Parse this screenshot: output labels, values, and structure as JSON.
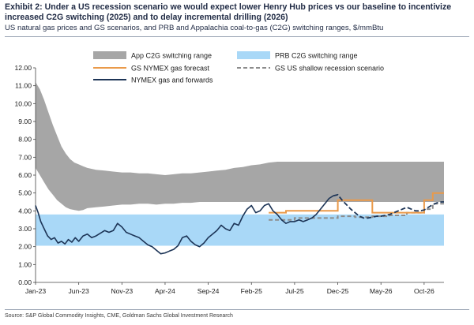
{
  "header": {
    "title": "Exhibit 2: Under a US recession scenario we would expect lower Henry Hub prices vs our baseline to incentivize increased C2G switching (2025) and to delay incremental drilling (2026)",
    "subtitle": "US natural gas prices and GS scenarios, and PRB and Appalachia coal-to-gas (C2G) switching ranges, $/mmBtu"
  },
  "source": "Source: S&P Global Commodity Insights, CME, Goldman Sachs Global Investment Research",
  "colors": {
    "app_band": "#a6a6a6",
    "prb_band": "#a9d8f7",
    "gs_forecast": "#ea9a4a",
    "recession": "#8c8c8c",
    "nymex": "#1d3557"
  },
  "chart_data": {
    "type": "line",
    "x_unit": "months since Jan-23",
    "xlim": [
      0,
      47.3
    ],
    "ylim": [
      0,
      12
    ],
    "yticks": [
      "0.00",
      "1.00",
      "2.00",
      "3.00",
      "4.00",
      "5.00",
      "6.00",
      "7.00",
      "8.00",
      "9.00",
      "10.00",
      "11.00",
      "12.00"
    ],
    "xticks": [
      {
        "label": "Jan-23",
        "x": 0
      },
      {
        "label": "Jun-23",
        "x": 5
      },
      {
        "label": "Nov-23",
        "x": 10
      },
      {
        "label": "Apr-24",
        "x": 15
      },
      {
        "label": "Sep-24",
        "x": 20
      },
      {
        "label": "Feb-25",
        "x": 25
      },
      {
        "label": "Jul-25",
        "x": 30
      },
      {
        "label": "Dec-25",
        "x": 35
      },
      {
        "label": "May-26",
        "x": 40
      },
      {
        "label": "Oct-26",
        "x": 45
      }
    ],
    "legend": [
      {
        "name": "App C2G switching range",
        "kind": "band",
        "color_key": "app_band"
      },
      {
        "name": "PRB C2G switching range",
        "kind": "band",
        "color_key": "prb_band"
      },
      {
        "name": "GS NYMEX gas forecast",
        "kind": "line",
        "color_key": "gs_forecast"
      },
      {
        "name": "GS US shallow recession scenario",
        "kind": "dashed",
        "color_key": "recession"
      },
      {
        "name": "NYMEX gas and forwards",
        "kind": "line",
        "color_key": "nymex"
      }
    ],
    "app_band": {
      "x": [
        0,
        0.5,
        1,
        1.5,
        2,
        2.5,
        3,
        3.5,
        4,
        4.5,
        5,
        5.5,
        6,
        7,
        8,
        9,
        10,
        11,
        12,
        13,
        14,
        15,
        16,
        17,
        18,
        19,
        20,
        21,
        22,
        23,
        24,
        25,
        26,
        27,
        28,
        29,
        30,
        32,
        34,
        36,
        38,
        40,
        42,
        44,
        46,
        47.3
      ],
      "lower": [
        6.4,
        6.0,
        5.6,
        5.2,
        4.9,
        4.6,
        4.4,
        4.2,
        4.1,
        4.05,
        4.0,
        4.05,
        4.15,
        4.2,
        4.25,
        4.3,
        4.35,
        4.35,
        4.4,
        4.4,
        4.35,
        4.4,
        4.4,
        4.45,
        4.45,
        4.5,
        4.5,
        4.5,
        4.5,
        4.5,
        4.5,
        4.5,
        4.5,
        4.5,
        4.5,
        4.5,
        4.5,
        4.5,
        4.5,
        4.5,
        4.5,
        4.5,
        4.5,
        4.5,
        4.5,
        4.5
      ],
      "upper": [
        11.2,
        10.8,
        10.2,
        9.5,
        8.8,
        8.2,
        7.6,
        7.2,
        6.9,
        6.7,
        6.6,
        6.5,
        6.4,
        6.3,
        6.25,
        6.2,
        6.15,
        6.15,
        6.1,
        6.1,
        6.05,
        6.0,
        6.05,
        6.1,
        6.1,
        6.15,
        6.2,
        6.25,
        6.3,
        6.4,
        6.45,
        6.55,
        6.6,
        6.7,
        6.75,
        6.75,
        6.75,
        6.75,
        6.75,
        6.75,
        6.75,
        6.75,
        6.75,
        6.75,
        6.75,
        6.75
      ]
    },
    "prb_band": {
      "x": [
        0,
        47.3
      ],
      "lower": [
        2.05,
        2.05
      ],
      "upper": [
        3.8,
        3.8
      ]
    },
    "nymex_forwards": {
      "x": [
        0,
        0.3,
        0.6,
        1,
        1.4,
        1.8,
        2.2,
        2.6,
        3,
        3.4,
        3.8,
        4.2,
        4.6,
        5,
        5.5,
        6,
        6.5,
        7,
        7.5,
        8,
        8.5,
        9,
        9.5,
        10,
        10.5,
        11,
        11.5,
        12,
        12.5,
        13,
        13.5,
        14,
        14.5,
        15,
        15.5,
        16,
        16.5,
        17,
        17.5,
        18,
        18.5,
        19,
        19.5,
        20,
        20.5,
        21,
        21.5,
        22,
        22.5,
        23,
        23.5,
        24,
        24.5,
        25,
        25.5,
        26,
        26.5,
        27,
        27.5,
        28,
        28.5,
        29,
        29.5,
        30,
        30.5,
        31,
        31.5,
        32,
        32.5,
        33,
        33.5,
        34,
        34.5,
        35,
        35.5,
        36,
        36.5,
        37,
        37.5,
        38,
        38.5,
        39,
        39.5,
        40,
        40.5,
        41,
        41.5,
        42,
        42.5,
        43,
        43.5,
        44,
        44.5,
        45,
        45.5,
        46,
        46.5,
        47,
        47.3
      ],
      "y": [
        4.3,
        3.9,
        3.4,
        3.0,
        2.6,
        2.4,
        2.5,
        2.2,
        2.3,
        2.15,
        2.4,
        2.25,
        2.5,
        2.3,
        2.6,
        2.7,
        2.5,
        2.6,
        2.75,
        2.9,
        2.8,
        2.9,
        3.3,
        3.1,
        2.8,
        2.7,
        2.6,
        2.5,
        2.3,
        2.1,
        2.0,
        1.8,
        1.6,
        1.65,
        1.75,
        1.85,
        2.05,
        2.5,
        2.6,
        2.3,
        2.1,
        2.0,
        2.2,
        2.5,
        2.7,
        2.9,
        3.2,
        3.0,
        2.9,
        3.3,
        3.2,
        3.7,
        4.1,
        4.3,
        3.9,
        4.0,
        4.3,
        4.4,
        4.0,
        3.8,
        3.5,
        3.3,
        3.4,
        3.4,
        3.5,
        3.4,
        3.5,
        3.6,
        3.8,
        4.1,
        4.4,
        4.7,
        4.85,
        4.9,
        4.6,
        4.35,
        4.1,
        3.9,
        3.7,
        3.6,
        3.6,
        3.65,
        3.7,
        3.7,
        3.75,
        3.8,
        3.9,
        4.0,
        4.1,
        4.2,
        4.1,
        4.0,
        4.0,
        4.05,
        4.2,
        4.35,
        4.45,
        4.5,
        4.5
      ]
    },
    "gs_forecast": {
      "x": [
        27,
        29,
        29,
        35,
        35,
        39,
        39,
        45,
        45,
        46,
        46,
        47.3
      ],
      "y": [
        3.9,
        3.9,
        4.0,
        4.0,
        4.6,
        4.6,
        3.9,
        3.9,
        4.6,
        4.6,
        5.0,
        5.0
      ]
    },
    "recession": {
      "x": [
        27,
        30,
        30,
        35,
        35,
        37,
        37,
        39,
        39,
        41,
        41,
        43,
        43,
        45,
        45,
        46,
        46,
        47.3
      ],
      "y": [
        3.5,
        3.5,
        3.6,
        3.6,
        3.7,
        3.7,
        3.65,
        3.65,
        3.7,
        3.7,
        3.75,
        3.75,
        3.9,
        3.9,
        4.1,
        4.1,
        4.4,
        4.4
      ]
    }
  }
}
